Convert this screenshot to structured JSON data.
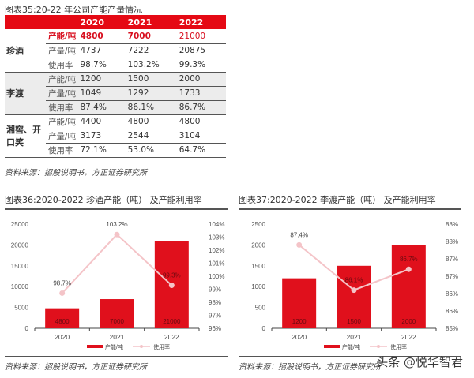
{
  "table": {
    "title": "图表35:20-22 年公司产能产量情况",
    "header": [
      "",
      "",
      "2020",
      "2021",
      "2022"
    ],
    "groups": [
      {
        "name": "珍酒",
        "rows": [
          {
            "label": "产能/吨",
            "values": [
              "4800",
              "7000",
              "21000"
            ],
            "highlight": true
          },
          {
            "label": "产量/吨",
            "values": [
              "4737",
              "7222",
              "20875"
            ]
          },
          {
            "label": "使用率",
            "values": [
              "98.7%",
              "103.2%",
              "99.3%"
            ]
          }
        ]
      },
      {
        "name": "李渡",
        "rows": [
          {
            "label": "产能/吨",
            "values": [
              "1200",
              "1500",
              "2000"
            ]
          },
          {
            "label": "产量/吨",
            "values": [
              "1049",
              "1292",
              "1733"
            ]
          },
          {
            "label": "使用率",
            "values": [
              "87.4%",
              "86.1%",
              "86.7%"
            ]
          }
        ]
      },
      {
        "name": "湘窖、开口笑",
        "rows": [
          {
            "label": "产能/吨",
            "values": [
              "4400",
              "4800",
              "4800"
            ]
          },
          {
            "label": "产量/吨",
            "values": [
              "3173",
              "2544",
              "3104"
            ]
          },
          {
            "label": "使用率",
            "values": [
              "72.1%",
              "53.0%",
              "64.7%"
            ]
          }
        ]
      }
    ],
    "source": "资料来源：招股说明书，方正证券研究所"
  },
  "chart_data": [
    {
      "type": "bar",
      "title": "图表36:2020-2022 珍酒产能（吨） 及产能利用率",
      "categories": [
        "2020",
        "2021",
        "2022"
      ],
      "series": [
        {
          "name": "产能/吨",
          "type": "bar",
          "axis": "left",
          "values": [
            4800,
            7000,
            21000
          ],
          "labels": [
            "4800",
            "7000",
            "21000"
          ],
          "color": "#e0101c"
        },
        {
          "name": "使用率",
          "type": "line",
          "axis": "right",
          "values": [
            98.7,
            103.2,
            99.3
          ],
          "labels": [
            "98.7%",
            "103.2%",
            "99.3%"
          ],
          "color": "#f4c4c8"
        }
      ],
      "y_left": {
        "range": [
          0,
          25000
        ],
        "ticks": [
          "0",
          "5000",
          "10000",
          "15000",
          "20000",
          "25000"
        ]
      },
      "y_right": {
        "range": [
          96,
          104
        ],
        "ticks": [
          "96%",
          "97%",
          "98%",
          "99%",
          "100%",
          "101%",
          "102%",
          "103%",
          "104%"
        ]
      },
      "legend": "bottom",
      "grid": false,
      "source": "资料来源：招股说明书，方正证券研究所"
    },
    {
      "type": "bar",
      "title": "图表37:2020-2022 李渡产能（吨） 及产能利用率",
      "categories": [
        "2020",
        "2021",
        "2022"
      ],
      "series": [
        {
          "name": "产能/吨",
          "type": "bar",
          "axis": "left",
          "values": [
            1200,
            1500,
            2000
          ],
          "labels": [
            "1200",
            "1500",
            "2000"
          ],
          "color": "#e0101c"
        },
        {
          "name": "使用率",
          "type": "line",
          "axis": "right",
          "values": [
            87.4,
            86.1,
            86.7
          ],
          "labels": [
            "87.4%",
            "86.1%",
            "86.7%"
          ],
          "color": "#f4c4c8"
        }
      ],
      "y_left": {
        "range": [
          0,
          2500
        ],
        "ticks": [
          "0",
          "500",
          "1000",
          "1500",
          "2000",
          "2500"
        ]
      },
      "y_right": {
        "range": [
          85,
          88
        ],
        "ticks": [
          "85%",
          "86%",
          "86%",
          "87%",
          "87%",
          "88%",
          "88%"
        ]
      },
      "legend": "bottom",
      "grid": false,
      "source": "资料来源：招股说明书，方正证券研究所"
    }
  ],
  "watermark": "头条 @悦华智君"
}
